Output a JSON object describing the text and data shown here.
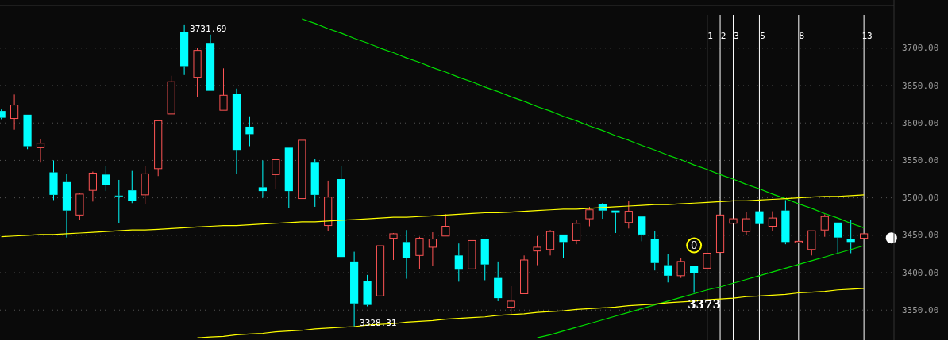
{
  "chart_data": {
    "type": "candlestick",
    "categories": [
      null,
      null,
      null,
      null,
      null,
      null,
      null,
      null,
      null,
      null,
      null,
      null,
      null,
      null,
      null,
      null,
      null,
      null,
      null,
      null,
      null,
      null,
      null,
      null,
      null,
      null,
      null,
      null,
      null,
      null,
      null,
      null,
      null,
      null,
      null,
      null,
      null,
      null,
      null,
      null,
      null,
      null,
      null,
      null,
      null,
      null,
      null,
      null,
      null,
      null,
      null,
      null,
      null,
      null,
      null,
      null,
      null,
      null,
      null,
      null,
      null,
      null,
      null,
      null,
      null,
      null,
      null
    ],
    "ohlc": [
      [
        3616,
        3618,
        3605,
        3607
      ],
      [
        3606,
        3638,
        3591,
        3624
      ],
      [
        3611,
        3611,
        3565,
        3569
      ],
      [
        3567,
        3578,
        3547,
        3573
      ],
      [
        3534,
        3550,
        3497,
        3504
      ],
      [
        3521,
        3532,
        3447,
        3483
      ],
      [
        3477,
        3507,
        3470,
        3505
      ],
      [
        3510,
        3535,
        3495,
        3533
      ],
      [
        3531,
        3543,
        3509,
        3517
      ],
      [
        3503,
        3524,
        3466,
        3502
      ],
      [
        3510,
        3536,
        3493,
        3496
      ],
      [
        3504,
        3542,
        3492,
        3532
      ],
      [
        3539,
        3603,
        3529,
        3603
      ],
      [
        3612,
        3663,
        3612,
        3655
      ],
      [
        3721,
        3731.69,
        3664,
        3676
      ],
      [
        3661,
        3700,
        3635,
        3697
      ],
      [
        3707,
        3718,
        3643,
        3643
      ],
      [
        3617,
        3673,
        3617,
        3637
      ],
      [
        3639,
        3646,
        3532,
        3564
      ],
      [
        3595,
        3609,
        3569,
        3585
      ],
      [
        3514,
        3550,
        3500,
        3509
      ],
      [
        3531,
        3552,
        3512,
        3551
      ],
      [
        3567,
        3567,
        3486,
        3509
      ],
      [
        3499,
        3577,
        3499,
        3577
      ],
      [
        3547,
        3552,
        3488,
        3504
      ],
      [
        3463,
        3523,
        3456,
        3501
      ],
      [
        3525,
        3542,
        3421,
        3421
      ],
      [
        3415,
        3428,
        3328.31,
        3359
      ],
      [
        3389,
        3397,
        3355,
        3357
      ],
      [
        3369,
        3436,
        3369,
        3436
      ],
      [
        3446,
        3453,
        3417,
        3452
      ],
      [
        3441,
        3457,
        3392,
        3420
      ],
      [
        3423,
        3448,
        3405,
        3446
      ],
      [
        3434,
        3454,
        3409,
        3445
      ],
      [
        3449,
        3478,
        3449,
        3462
      ],
      [
        3423,
        3439,
        3388,
        3404
      ],
      [
        3405,
        3443,
        3405,
        3443
      ],
      [
        3445,
        3445,
        3390,
        3411
      ],
      [
        3393,
        3415,
        3362,
        3366
      ],
      [
        3354,
        3382,
        3344,
        3362
      ],
      [
        3372,
        3423,
        3372,
        3417
      ],
      [
        3429,
        3449,
        3410,
        3434
      ],
      [
        3431,
        3457,
        3423,
        3455
      ],
      [
        3451,
        3451,
        3420,
        3441
      ],
      [
        3443,
        3470,
        3438,
        3466
      ],
      [
        3472,
        3488,
        3462,
        3484
      ],
      [
        3492,
        3493,
        3472,
        3483
      ],
      [
        3483,
        3483,
        3453,
        3480
      ],
      [
        3467,
        3496,
        3459,
        3482
      ],
      [
        3475,
        3475,
        3442,
        3451
      ],
      [
        3445,
        3456,
        3403,
        3413
      ],
      [
        3410,
        3425,
        3387,
        3396
      ],
      [
        3396,
        3420,
        3393,
        3415
      ],
      [
        3409,
        3409,
        3373,
        3399
      ],
      [
        3406,
        3426,
        3406,
        3426
      ],
      [
        3427,
        3477,
        3427,
        3477
      ],
      [
        3466,
        3472,
        3466,
        3472
      ],
      [
        3455,
        3481,
        3450,
        3472
      ],
      [
        3482,
        3482,
        3465,
        3465
      ],
      [
        3462,
        3482,
        3456,
        3473
      ],
      [
        3483,
        3497,
        3438,
        3441
      ],
      [
        3440,
        3442,
        3440,
        3442
      ],
      [
        3431,
        3456,
        3423,
        3456
      ],
      [
        3457,
        3478,
        3448,
        3475
      ],
      [
        3467,
        3467,
        3426,
        3447
      ],
      [
        3445,
        3471,
        3426,
        3441
      ],
      [
        3446,
        3452,
        3446,
        3452
      ]
    ],
    "colors": [
      "#00ffff",
      "#ff5555",
      "#00ffff",
      "#ff5555",
      "#00ffff",
      "#00ffff",
      "#ff5555",
      "#ff5555",
      "#00ffff",
      "#00ffff",
      "#00ffff",
      "#ff5555",
      "#ff5555",
      "#ff5555",
      "#00ffff",
      "#ff5555",
      "#00ffff",
      "#ff5555",
      "#00ffff",
      "#00ffff",
      "#00ffff",
      "#ff5555",
      "#00ffff",
      "#ff5555",
      "#00ffff",
      "#ff5555",
      "#00ffff",
      "#00ffff",
      "#00ffff",
      "#ff5555",
      "#ff5555",
      "#00ffff",
      "#ff5555",
      "#ff5555",
      "#ff5555",
      "#00ffff",
      "#ff5555",
      "#00ffff",
      "#00ffff",
      "#ff5555",
      "#ff5555",
      "#ff5555",
      "#ff5555",
      "#00ffff",
      "#ff5555",
      "#ff5555",
      "#00ffff",
      "#00ffff",
      "#ff5555",
      "#00ffff",
      "#00ffff",
      "#00ffff",
      "#ff5555",
      "#00ffff",
      "#ff5555",
      "#ff5555",
      "#ff5555",
      "#ff5555",
      "#00ffff",
      "#ff5555",
      "#00ffff",
      "#ff5555",
      "#ff5555",
      "#ff5555",
      "#00ffff",
      "#00ffff",
      "#ff5555"
    ],
    "series": [
      {
        "type": "line",
        "color": "#00dd00",
        "values": [
          null,
          null,
          null,
          null,
          null,
          null,
          null,
          null,
          null,
          null,
          null,
          null,
          null,
          null,
          null,
          null,
          null,
          null,
          null,
          null,
          null,
          null,
          null,
          3739,
          3733,
          3726,
          3720,
          3713,
          3707,
          3700,
          3694,
          3687,
          3681,
          3674,
          3668,
          3661,
          3655,
          3648,
          3642,
          3635,
          3629,
          3622,
          3616,
          3609,
          3603,
          3596,
          3590,
          3583,
          3577,
          3570,
          3564,
          3557,
          3551,
          3544,
          3538,
          3531,
          3525,
          3518,
          3512,
          3505,
          3499,
          3492,
          3486,
          3479,
          3473,
          3466,
          3460
        ]
      },
      {
        "type": "line",
        "color": "#00dd00",
        "values": [
          null,
          null,
          null,
          null,
          null,
          null,
          null,
          null,
          null,
          null,
          null,
          null,
          null,
          null,
          null,
          null,
          null,
          null,
          null,
          null,
          null,
          null,
          null,
          null,
          null,
          null,
          null,
          null,
          null,
          null,
          null,
          null,
          null,
          null,
          null,
          null,
          null,
          null,
          null,
          null,
          null,
          3313,
          3317,
          3322,
          3327,
          3332,
          3337,
          3342,
          3347,
          3352,
          3357,
          3362,
          3367,
          3372,
          3377,
          3381,
          3386,
          3391,
          3396,
          3401,
          3406,
          3411,
          3416,
          3421,
          3426,
          3431,
          3436
        ]
      },
      {
        "type": "line",
        "color": "#ffff00",
        "values": [
          3448,
          3449,
          3450,
          3451,
          3451,
          3452,
          3453,
          3454,
          3455,
          3456,
          3457,
          3457,
          3458,
          3459,
          3460,
          3461,
          3462,
          3463,
          3463,
          3464,
          3465,
          3466,
          3467,
          3468,
          3468,
          3469,
          3470,
          3471,
          3472,
          3473,
          3474,
          3474,
          3475,
          3476,
          3477,
          3478,
          3479,
          3480,
          3480,
          3481,
          3482,
          3483,
          3484,
          3485,
          3485,
          3486,
          3487,
          3488,
          3489,
          3490,
          3491,
          3491,
          3492,
          3493,
          3494,
          3495,
          3496,
          3496,
          3497,
          3498,
          3499,
          3500,
          3501,
          3502,
          3502,
          3503,
          3504
        ]
      },
      {
        "type": "line",
        "color": "#ffff00",
        "values": [
          null,
          null,
          null,
          null,
          null,
          null,
          null,
          null,
          null,
          null,
          null,
          null,
          null,
          null,
          null,
          3313,
          3314,
          3315,
          3317,
          3318,
          3319,
          3321,
          3322,
          3323,
          3325,
          3326,
          3327,
          3328,
          3330,
          3331,
          3332,
          3334,
          3335,
          3336,
          3338,
          3339,
          3340,
          3341,
          3343,
          3344,
          3345,
          3347,
          3348,
          3349,
          3351,
          3352,
          3353,
          3354,
          3356,
          3357,
          3358,
          3360,
          3361,
          3362,
          3364,
          3365,
          3366,
          3368,
          3369,
          3370,
          3371,
          3373,
          3374,
          3375,
          3377,
          3378,
          3379
        ]
      }
    ],
    "ylim": [
      3310,
      3757
    ],
    "yticks": [
      {
        "value": 3350,
        "label": "3350.00"
      },
      {
        "value": 3400,
        "label": "3400.00"
      },
      {
        "value": 3450,
        "label": "3450.00"
      },
      {
        "value": 3500,
        "label": "3500.00"
      },
      {
        "value": 3550,
        "label": "3550.00"
      },
      {
        "value": 3600,
        "label": "3600.00"
      },
      {
        "value": 3650,
        "label": "3650.00"
      },
      {
        "value": 3700,
        "label": "3700.00"
      }
    ],
    "x2lim": [
      -53.1,
      15.3
    ],
    "x2ticks": [
      1,
      2,
      3,
      5,
      8,
      13
    ],
    "grid": true,
    "annotations": [
      "3731.69",
      {
        "text": "3328.31",
        "y": 3328.31
      },
      {
        "text": "3373",
        "y": 3373
      },
      "0"
    ]
  }
}
